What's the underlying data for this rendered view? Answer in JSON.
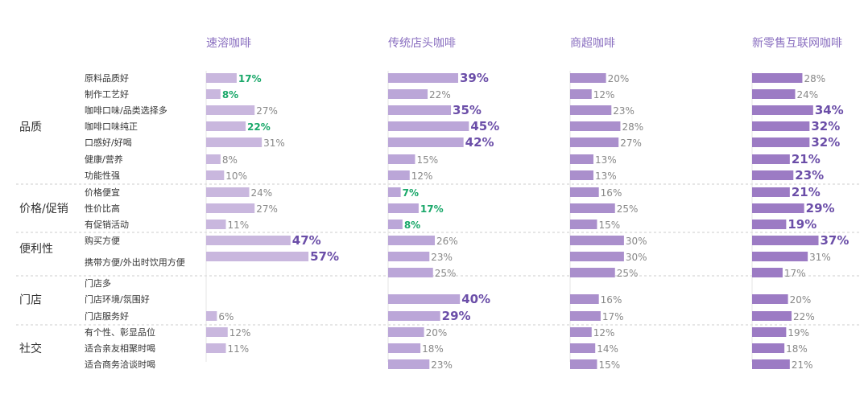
{
  "chart_data": {
    "type": "bar",
    "title": "",
    "columns": [
      "速溶咖啡",
      "传统店头咖啡",
      "商超咖啡",
      "新零售互联网咖啡"
    ],
    "column_colors": [
      "#c9b7de",
      "#bba6d8",
      "#aa8fcc",
      "#9c7bc4"
    ],
    "groups": [
      {
        "name": "品质",
        "items": [
          "原料品质好",
          "制作工艺好",
          "咖啡口味/品类选择多",
          "咖啡口味纯正",
          "口感好/好喝",
          "健康/营养",
          "功能性强"
        ]
      },
      {
        "name": "价格/促销",
        "items": [
          "价格便宜",
          "性价比高",
          "有促销活动"
        ]
      },
      {
        "name": "便利性",
        "items": [
          "购买方便",
          "携带方便/外出时饮用方便"
        ]
      },
      {
        "name": "门店",
        "items": [
          "门店多",
          "门店环境/氛围好",
          "门店服务好"
        ]
      },
      {
        "name": "社交",
        "items": [
          "有个性、彰显品位",
          "适合亲友相聚时喝",
          "适合商务洽谈时喝"
        ]
      }
    ],
    "series": [
      {
        "name": "速溶咖啡",
        "values": [
          17,
          8,
          27,
          22,
          31,
          8,
          10,
          24,
          27,
          11,
          47,
          57,
          null,
          null,
          6,
          12,
          11,
          null
        ],
        "hi": [
          false,
          false,
          false,
          false,
          false,
          false,
          false,
          false,
          false,
          false,
          true,
          true,
          false,
          false,
          false,
          false,
          false,
          false
        ],
        "lo": [
          true,
          true,
          false,
          true,
          false,
          false,
          false,
          false,
          false,
          false,
          false,
          false,
          false,
          false,
          false,
          false,
          false,
          false
        ]
      },
      {
        "name": "传统店头咖啡",
        "values": [
          39,
          22,
          35,
          45,
          42,
          15,
          12,
          7,
          17,
          8,
          26,
          23,
          25,
          40,
          29,
          20,
          18,
          23
        ],
        "hi": [
          true,
          false,
          true,
          true,
          true,
          false,
          false,
          false,
          false,
          false,
          false,
          false,
          false,
          true,
          true,
          false,
          false,
          false
        ],
        "lo": [
          false,
          false,
          false,
          false,
          false,
          false,
          false,
          true,
          true,
          true,
          false,
          false,
          false,
          false,
          false,
          false,
          false,
          false
        ]
      },
      {
        "name": "商超咖啡",
        "values": [
          20,
          12,
          23,
          28,
          27,
          13,
          13,
          16,
          25,
          15,
          30,
          30,
          25,
          16,
          17,
          12,
          14,
          15
        ],
        "hi": [
          false,
          false,
          false,
          false,
          false,
          false,
          false,
          false,
          false,
          false,
          false,
          false,
          false,
          false,
          false,
          false,
          false,
          false
        ],
        "lo": [
          false,
          false,
          false,
          false,
          false,
          false,
          false,
          false,
          false,
          false,
          false,
          false,
          false,
          false,
          false,
          false,
          false,
          false
        ]
      },
      {
        "name": "新零售互联网咖啡",
        "values": [
          28,
          24,
          34,
          32,
          32,
          21,
          23,
          21,
          29,
          19,
          37,
          31,
          17,
          20,
          22,
          19,
          18,
          21
        ],
        "hi": [
          false,
          false,
          true,
          true,
          true,
          true,
          true,
          true,
          true,
          true,
          true,
          false,
          false,
          false,
          false,
          false,
          false,
          false
        ],
        "lo": [
          false,
          false,
          false,
          false,
          false,
          false,
          false,
          false,
          false,
          false,
          false,
          false,
          false,
          false,
          false,
          false,
          false,
          false
        ]
      }
    ],
    "value_suffix": "%",
    "xlim": [
      0,
      100
    ]
  }
}
